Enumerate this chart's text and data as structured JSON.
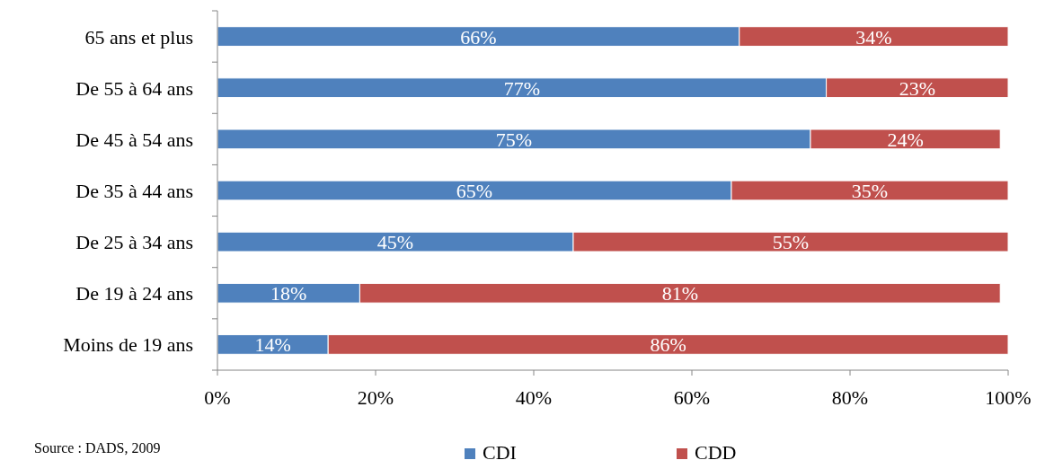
{
  "chart_data": {
    "type": "bar",
    "orientation": "horizontal",
    "stacked": true,
    "legend": "bottom",
    "grid": false,
    "categories": [
      "65 ans et plus",
      "De 55 à 64 ans",
      "De 45 à 54 ans",
      "De 35 à 44 ans",
      "De 25 à 34 ans",
      "De 19 à 24 ans",
      "Moins de 19 ans"
    ],
    "series": [
      {
        "name": "CDI",
        "color": "#4f81bd",
        "values": [
          66,
          77,
          75,
          65,
          45,
          18,
          14
        ],
        "value_labels": [
          "66%",
          "77%",
          "75%",
          "65%",
          "45%",
          "18%",
          "14%"
        ]
      },
      {
        "name": "CDD",
        "color": "#c0504d",
        "values": [
          34,
          23,
          24,
          35,
          55,
          81,
          86
        ],
        "value_labels": [
          "34%",
          "23%",
          "24%",
          "35%",
          "55%",
          "81%",
          "86%"
        ]
      }
    ],
    "xlim": [
      0,
      100
    ],
    "xticks": [
      {
        "value": 0,
        "label": "0%"
      },
      {
        "value": 20,
        "label": "20%"
      },
      {
        "value": 40,
        "label": "40%"
      },
      {
        "value": 60,
        "label": "60%"
      },
      {
        "value": 80,
        "label": "80%"
      },
      {
        "value": 100,
        "label": "100%"
      }
    ],
    "annotations": [
      "Source : DADS, 2009"
    ]
  }
}
